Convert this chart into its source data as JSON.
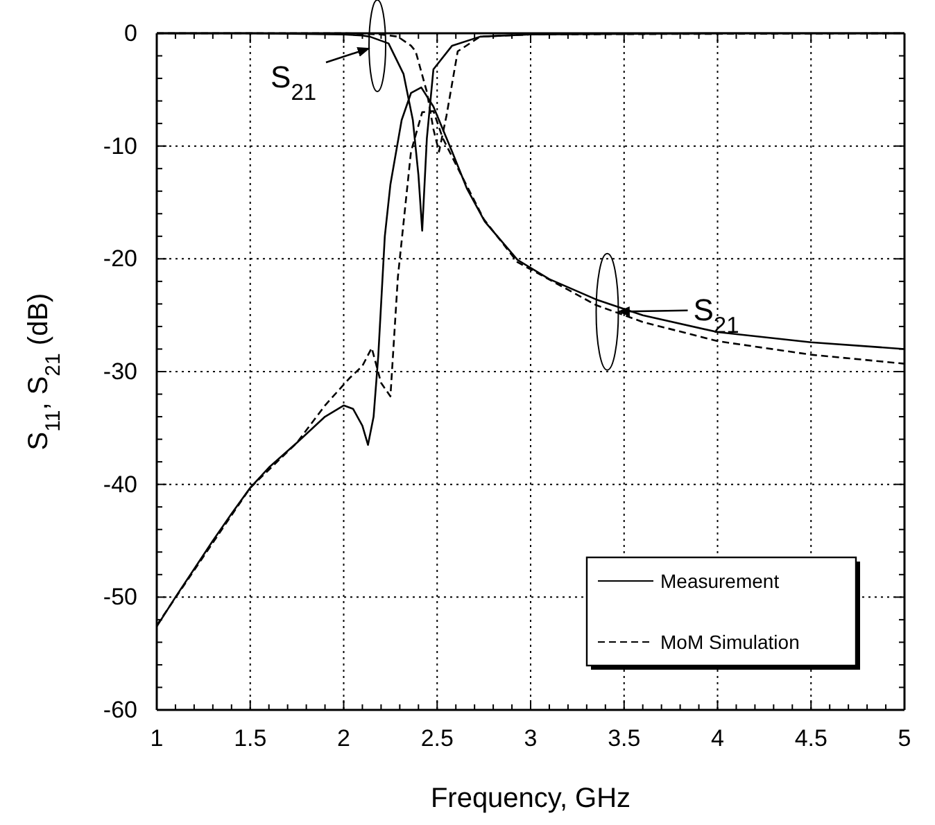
{
  "chart_data": {
    "type": "line",
    "xlabel": "Frequency, GHz",
    "ylabel": "S$_{11}$, S$_{21}$ (dB)",
    "xlim": [
      1,
      5
    ],
    "xticks": [
      1,
      1.5,
      2,
      2.5,
      3,
      3.5,
      4,
      4.5,
      5
    ],
    "ylim": [
      -60,
      0
    ],
    "yticks": [
      -60,
      -50,
      -40,
      -30,
      -20,
      -10,
      0
    ],
    "grid": true,
    "legend": "bottom right",
    "annotations": [
      {
        "text": "S$_{21}$",
        "x": 2.18,
        "y": -1.1
      },
      {
        "text": "S$_{21}$",
        "x": 3.41,
        "y": -24.7
      }
    ],
    "series": [
      {
        "name": "Measurement",
        "color": "#000000",
        "line_style": "solid",
        "x": [
          1,
          1.1,
          1.2,
          1.3,
          1.4,
          1.5,
          1.6,
          1.75,
          1.9,
          2.0,
          2.05,
          2.1,
          2.13,
          2.16,
          2.185,
          2.22,
          2.25,
          2.31,
          2.36,
          2.415,
          2.48,
          2.58,
          2.66,
          2.755,
          2.93,
          3.1,
          3.35,
          3.6,
          4.0,
          4.5,
          5
        ],
        "values": [
          -52.6,
          -50,
          -47.5,
          -45,
          -42.6,
          -40.3,
          -38.5,
          -36.3,
          -34,
          -33,
          -33.3,
          -34.8,
          -36.5,
          -34,
          -28.6,
          -18,
          -13.4,
          -7.7,
          -5.3,
          -4.8,
          -6.5,
          -10.5,
          -13.8,
          -16.7,
          -20.1,
          -21.8,
          -23.6,
          -25,
          -26.5,
          -27.4,
          -28
        ]
      },
      {
        "color": "#000000",
        "line_style": "solid",
        "x": [
          1,
          1.5,
          2,
          2.1,
          2.14,
          2.24,
          2.32,
          2.37,
          2.4,
          2.42,
          2.445,
          2.48,
          2.58,
          2.73,
          3,
          4,
          5
        ],
        "values": [
          0,
          0,
          -0.1,
          -0.2,
          -0.3,
          -0.9,
          -3.6,
          -7.7,
          -12.6,
          -17.5,
          -9.3,
          -3.2,
          -1.1,
          -0.3,
          -0.1,
          0,
          0
        ]
      },
      {
        "name": "MoM Simulation",
        "color": "#000000",
        "line_style": "dashed",
        "x": [
          1,
          1.5,
          1.75,
          1.9,
          2.03,
          2.1,
          2.15,
          2.2,
          2.25,
          2.29,
          2.36,
          2.42,
          2.48,
          2.53,
          2.63,
          2.75,
          2.93,
          3.35,
          3.6,
          4,
          4.5,
          5
        ],
        "values": [
          -52.5,
          -40.3,
          -36.3,
          -33,
          -30.6,
          -29.5,
          -27.9,
          -31,
          -32.2,
          -21.6,
          -10.5,
          -7,
          -6.9,
          -9.3,
          -12.6,
          -16.5,
          -20.3,
          -24.1,
          -25.6,
          -27.3,
          -28.5,
          -29.3
        ]
      },
      {
        "color": "#000000",
        "line_style": "dashed",
        "x": [
          1,
          2,
          2.2,
          2.29,
          2.36,
          2.385,
          2.445,
          2.48,
          2.51,
          2.55,
          2.61,
          2.73,
          3,
          5
        ],
        "values": [
          0,
          0,
          -0.1,
          -0.3,
          -1.1,
          -1.6,
          -5.2,
          -8.5,
          -10.5,
          -7.3,
          -1.6,
          -0.3,
          -0.1,
          0
        ]
      }
    ]
  }
}
